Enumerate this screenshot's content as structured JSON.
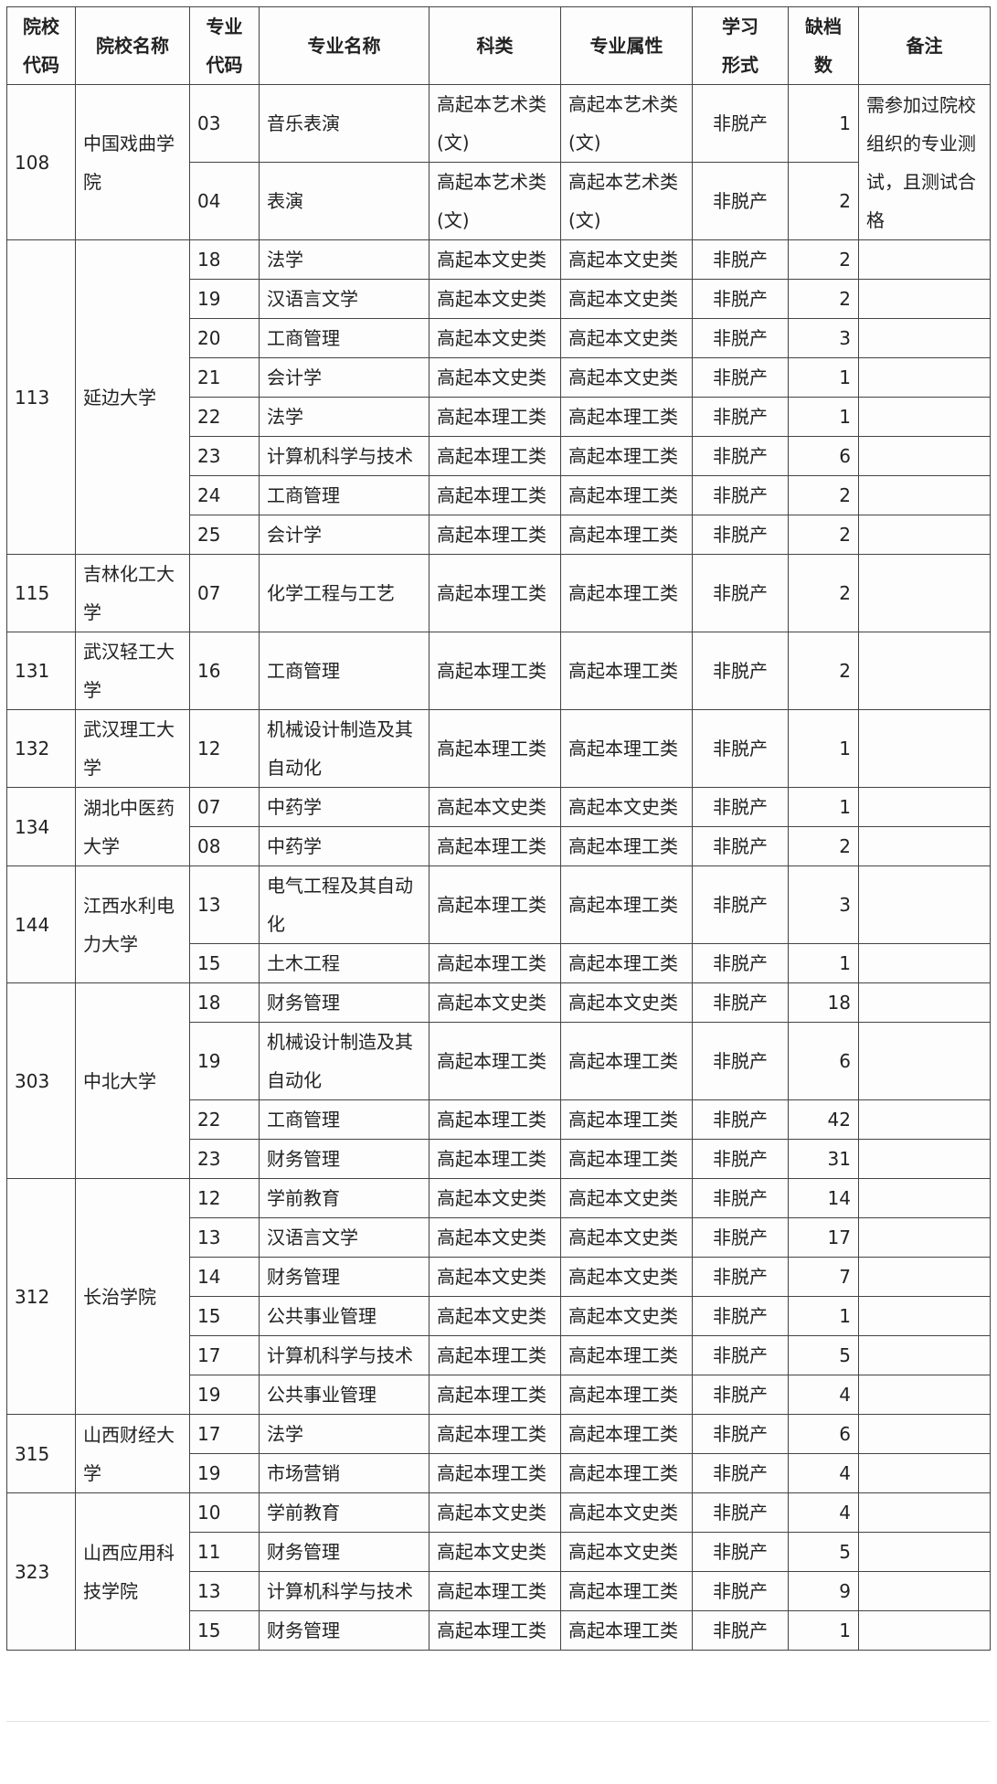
{
  "table": {
    "header": [
      "院校代码",
      "院校名称",
      "专业代码",
      "专业名称",
      "科类",
      "专业属性",
      "学习形式",
      "缺档数",
      "备注"
    ],
    "groups": [
      {
        "code": "108",
        "name": "中国戏曲学院",
        "note": "需参加过院校组织的专业测试，且测试合格",
        "rows": [
          [
            "03",
            "音乐表演",
            "高起本艺术类(文)",
            "高起本艺术类(文)",
            "非脱产",
            1
          ],
          [
            "04",
            "表演",
            "高起本艺术类(文)",
            "高起本艺术类(文)",
            "非脱产",
            2
          ]
        ]
      },
      {
        "code": "113",
        "name": "延边大学",
        "rows": [
          [
            "18",
            "法学",
            "高起本文史类",
            "高起本文史类",
            "非脱产",
            2
          ],
          [
            "19",
            "汉语言文学",
            "高起本文史类",
            "高起本文史类",
            "非脱产",
            2
          ],
          [
            "20",
            "工商管理",
            "高起本文史类",
            "高起本文史类",
            "非脱产",
            3
          ],
          [
            "21",
            "会计学",
            "高起本文史类",
            "高起本文史类",
            "非脱产",
            1
          ],
          [
            "22",
            "法学",
            "高起本理工类",
            "高起本理工类",
            "非脱产",
            1
          ],
          [
            "23",
            "计算机科学与技术",
            "高起本理工类",
            "高起本理工类",
            "非脱产",
            6
          ],
          [
            "24",
            "工商管理",
            "高起本理工类",
            "高起本理工类",
            "非脱产",
            2
          ],
          [
            "25",
            "会计学",
            "高起本理工类",
            "高起本理工类",
            "非脱产",
            2
          ]
        ]
      },
      {
        "code": "115",
        "name": "吉林化工大学",
        "rows": [
          [
            "07",
            "化学工程与工艺",
            "高起本理工类",
            "高起本理工类",
            "非脱产",
            2
          ]
        ]
      },
      {
        "code": "131",
        "name": "武汉轻工大学",
        "rows": [
          [
            "16",
            "工商管理",
            "高起本理工类",
            "高起本理工类",
            "非脱产",
            2
          ]
        ]
      },
      {
        "code": "132",
        "name": "武汉理工大学",
        "rows": [
          [
            "12",
            "机械设计制造及其自动化",
            "高起本理工类",
            "高起本理工类",
            "非脱产",
            1
          ]
        ]
      },
      {
        "code": "134",
        "name": "湖北中医药大学",
        "rows": [
          [
            "07",
            "中药学",
            "高起本文史类",
            "高起本文史类",
            "非脱产",
            1
          ],
          [
            "08",
            "中药学",
            "高起本理工类",
            "高起本理工类",
            "非脱产",
            2
          ]
        ]
      },
      {
        "code": "144",
        "name": "江西水利电力大学",
        "rows": [
          [
            "13",
            "电气工程及其自动化",
            "高起本理工类",
            "高起本理工类",
            "非脱产",
            3
          ],
          [
            "15",
            "土木工程",
            "高起本理工类",
            "高起本理工类",
            "非脱产",
            1
          ]
        ]
      },
      {
        "code": "303",
        "name": "中北大学",
        "rows": [
          [
            "18",
            "财务管理",
            "高起本文史类",
            "高起本文史类",
            "非脱产",
            18
          ],
          [
            "19",
            "机械设计制造及其自动化",
            "高起本理工类",
            "高起本理工类",
            "非脱产",
            6
          ],
          [
            "22",
            "工商管理",
            "高起本理工类",
            "高起本理工类",
            "非脱产",
            42
          ],
          [
            "23",
            "财务管理",
            "高起本理工类",
            "高起本理工类",
            "非脱产",
            31
          ]
        ]
      },
      {
        "code": "312",
        "name": "长治学院",
        "rows": [
          [
            "12",
            "学前教育",
            "高起本文史类",
            "高起本文史类",
            "非脱产",
            14
          ],
          [
            "13",
            "汉语言文学",
            "高起本文史类",
            "高起本文史类",
            "非脱产",
            17
          ],
          [
            "14",
            "财务管理",
            "高起本文史类",
            "高起本文史类",
            "非脱产",
            7
          ],
          [
            "15",
            "公共事业管理",
            "高起本文史类",
            "高起本文史类",
            "非脱产",
            1
          ],
          [
            "17",
            "计算机科学与技术",
            "高起本理工类",
            "高起本理工类",
            "非脱产",
            5
          ],
          [
            "19",
            "公共事业管理",
            "高起本理工类",
            "高起本理工类",
            "非脱产",
            4
          ]
        ]
      },
      {
        "code": "315",
        "name": "山西财经大学",
        "rows": [
          [
            "17",
            "法学",
            "高起本理工类",
            "高起本理工类",
            "非脱产",
            6
          ],
          [
            "19",
            "市场营销",
            "高起本理工类",
            "高起本理工类",
            "非脱产",
            4
          ]
        ]
      },
      {
        "code": "323",
        "name": "山西应用科技学院",
        "rows": [
          [
            "10",
            "学前教育",
            "高起本文史类",
            "高起本文史类",
            "非脱产",
            4
          ],
          [
            "11",
            "财务管理",
            "高起本文史类",
            "高起本文史类",
            "非脱产",
            5
          ],
          [
            "13",
            "计算机科学与技术",
            "高起本理工类",
            "高起本理工类",
            "非脱产",
            9
          ],
          [
            "15",
            "财务管理",
            "高起本理工类",
            "高起本理工类",
            "非脱产",
            1
          ]
        ]
      }
    ]
  }
}
